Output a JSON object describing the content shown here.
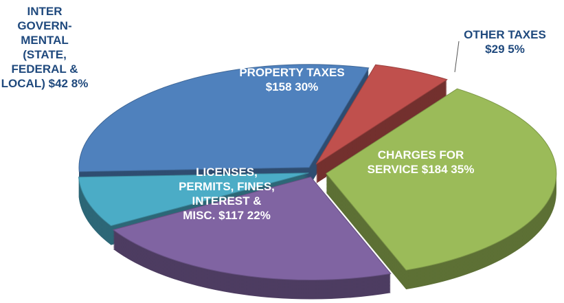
{
  "chart_data": {
    "type": "pie",
    "categories": [
      "OTHER TAXES",
      "CHARGES FOR SERVICE",
      "LICENSES, PERMITS, FINES, INTEREST & MISC.",
      "INTER GOVERN- MENTAL (STATE, FEDERAL & LOCAL)",
      "PROPERTY TAXES"
    ],
    "values": [
      29,
      184,
      117,
      42,
      158
    ],
    "value_labels": [
      "$29",
      "$184",
      "$117",
      "$42",
      "$158"
    ],
    "percents": [
      5,
      35,
      22,
      8,
      30
    ],
    "percent_labels": [
      "5%",
      "35%",
      "22%",
      "8%",
      "30%"
    ],
    "colors": [
      "#c0504d",
      "#9bbb59",
      "#8064a2",
      "#4bacc6",
      "#4f81bd"
    ]
  }
}
